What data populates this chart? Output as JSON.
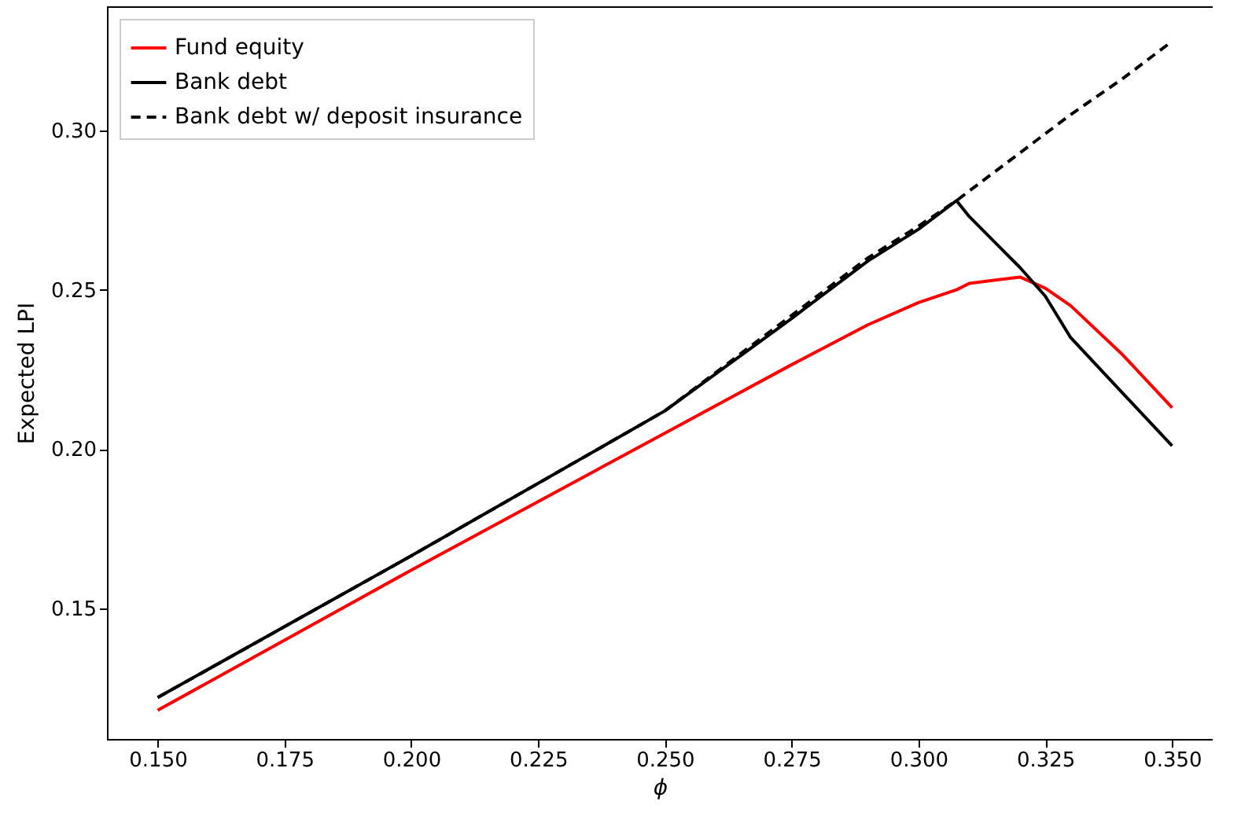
{
  "chart_data": {
    "type": "line",
    "xlabel": "ϕ",
    "ylabel": "Expected LPI",
    "x": [
      0.15,
      0.2,
      0.25,
      0.275,
      0.29,
      0.3,
      0.3075,
      0.31,
      0.32,
      0.325,
      0.33,
      0.34,
      0.35
    ],
    "series": [
      {
        "name": "Fund equity",
        "color": "#ff0000",
        "values": [
          0.118,
          0.162,
          0.205,
          0.2265,
          0.239,
          0.246,
          0.25,
          0.252,
          0.254,
          0.2505,
          0.245,
          0.23,
          0.213
        ]
      },
      {
        "name": "Bank debt",
        "color": "#000000",
        "values": [
          0.122,
          0.1665,
          0.212,
          0.241,
          0.259,
          0.269,
          0.278,
          0.273,
          0.257,
          0.248,
          0.235,
          0.218,
          0.201
        ]
      },
      {
        "name": "Bank debt w/ deposit insurance",
        "color": "#000000",
        "line_style": "dashed",
        "values": [
          0.122,
          0.1665,
          0.212,
          0.242,
          0.26,
          0.27,
          0.278,
          0.281,
          0.293,
          0.299,
          0.305,
          0.316,
          0.328
        ]
      }
    ],
    "xlim": [
      0.14,
      0.358
    ],
    "ylim": [
      0.109,
      0.339
    ],
    "xticks": [
      {
        "value": 0.15,
        "label": "0.150"
      },
      {
        "value": 0.175,
        "label": "0.175"
      },
      {
        "value": 0.2,
        "label": "0.200"
      },
      {
        "value": 0.225,
        "label": "0.225"
      },
      {
        "value": 0.25,
        "label": "0.250"
      },
      {
        "value": 0.275,
        "label": "0.275"
      },
      {
        "value": 0.3,
        "label": "0.300"
      },
      {
        "value": 0.325,
        "label": "0.325"
      },
      {
        "value": 0.35,
        "label": "0.350"
      }
    ],
    "yticks": [
      {
        "value": 0.15,
        "label": "0.15"
      },
      {
        "value": 0.2,
        "label": "0.20"
      },
      {
        "value": 0.25,
        "label": "0.25"
      },
      {
        "value": 0.3,
        "label": "0.30"
      }
    ],
    "legend": "top left",
    "grid": false
  }
}
